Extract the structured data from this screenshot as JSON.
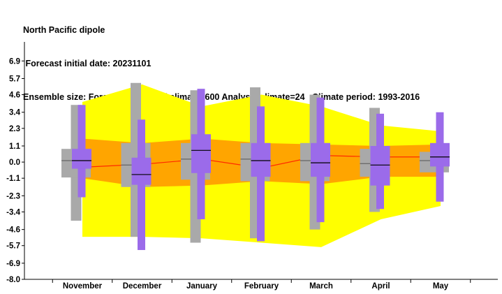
{
  "header": {
    "title": "North Pacific dipole",
    "subtitle": " Forecast initial date: 20231101",
    "info": "Ensemble size: Forecast=51 Model climate=600 Analysis climate=24   Climate period: 1993-2016"
  },
  "chart_data": {
    "type": "box",
    "title": "North Pacific dipole",
    "subtitle": "Forecast initial date: 20231101",
    "categories": [
      "November",
      "December",
      "January",
      "February",
      "March",
      "April",
      "May"
    ],
    "y_ticks": [
      6.9,
      5.7,
      4.6,
      3.4,
      2.3,
      1.1,
      0.0,
      -1.1,
      -2.3,
      -3.4,
      -4.6,
      -5.7,
      -6.9,
      -8.0
    ],
    "y_tick_labels": [
      "6.9",
      "5.7",
      "4.6",
      "3.4",
      "2.3",
      "1.1",
      "0.0",
      "-1.1",
      "-2.3",
      "-3.4",
      "-4.6",
      "-5.7",
      "-6.9",
      "-8.0"
    ],
    "ylim": [
      -8.0,
      8.2
    ],
    "grid": false,
    "climate_envelope_yellow": {
      "upper": [
        4.1,
        5.3,
        3.8,
        4.6,
        3.8,
        2.5,
        2.1
      ],
      "lower": [
        -5.1,
        -5.1,
        -5.2,
        -5.5,
        -5.8,
        -3.9,
        -3.0
      ]
    },
    "climate_envelope_orange": {
      "upper": [
        1.6,
        1.3,
        1.6,
        1.3,
        1.2,
        1.1,
        1.2
      ],
      "lower": [
        -1.1,
        -1.7,
        -1.6,
        -1.3,
        -1.5,
        -1.0,
        -1.0
      ]
    },
    "climate_median_line": [
      -0.35,
      -0.15,
      0.2,
      -0.4,
      0.45,
      0.35,
      0.35
    ],
    "model_climate_boxes": [
      {
        "whisker_low": -4.0,
        "box_low": -1.05,
        "median": 0.1,
        "box_high": 0.9,
        "whisker_high": 3.9
      },
      {
        "whisker_low": -5.1,
        "box_low": -1.7,
        "median": -0.2,
        "box_high": 1.3,
        "whisker_high": 5.4
      },
      {
        "whisker_low": -5.5,
        "box_low": -1.2,
        "median": 0.2,
        "box_high": 1.3,
        "whisker_high": 4.9
      },
      {
        "whisker_low": -5.2,
        "box_low": -1.3,
        "median": 0.2,
        "box_high": 1.3,
        "whisker_high": 5.1
      },
      {
        "whisker_low": -4.6,
        "box_low": -1.3,
        "median": 0.1,
        "box_high": 1.3,
        "whisker_high": 4.6
      },
      {
        "whisker_low": -3.4,
        "box_low": -1.0,
        "median": -0.1,
        "box_high": 0.9,
        "whisker_high": 3.7
      },
      {
        "whisker_low": null,
        "box_low": -0.7,
        "median": 0.1,
        "box_high": 0.7,
        "whisker_high": null
      }
    ],
    "forecast_boxes": [
      {
        "whisker_low": -2.4,
        "box_low": -0.45,
        "median": 0.1,
        "box_high": 0.9,
        "whisker_high": 3.9
      },
      {
        "whisker_low": -6.0,
        "box_low": -1.55,
        "median": -0.85,
        "box_high": 0.3,
        "whisker_high": 2.9
      },
      {
        "whisker_low": -3.9,
        "box_low": -0.75,
        "median": 0.8,
        "box_high": 1.9,
        "whisker_high": 5.0
      },
      {
        "whisker_low": -5.4,
        "box_low": -1.0,
        "median": 0.1,
        "box_high": 1.3,
        "whisker_high": 3.8
      },
      {
        "whisker_low": -4.1,
        "box_low": -1.0,
        "median": -0.05,
        "box_high": 1.3,
        "whisker_high": 4.4
      },
      {
        "whisker_low": -3.2,
        "box_low": -1.6,
        "median": -0.2,
        "box_high": 1.1,
        "whisker_high": 3.3
      },
      {
        "whisker_low": -2.7,
        "box_low": -0.3,
        "median": 0.35,
        "box_high": 1.3,
        "whisker_high": 3.4
      }
    ],
    "colors": {
      "yellow_band": "#ffff00",
      "orange_band": "#ffa500",
      "climate_box": "#a9a9a9",
      "forecast_box": "#9b6bea",
      "median_line": "#ff2a00",
      "median_tick": "#000000"
    }
  }
}
